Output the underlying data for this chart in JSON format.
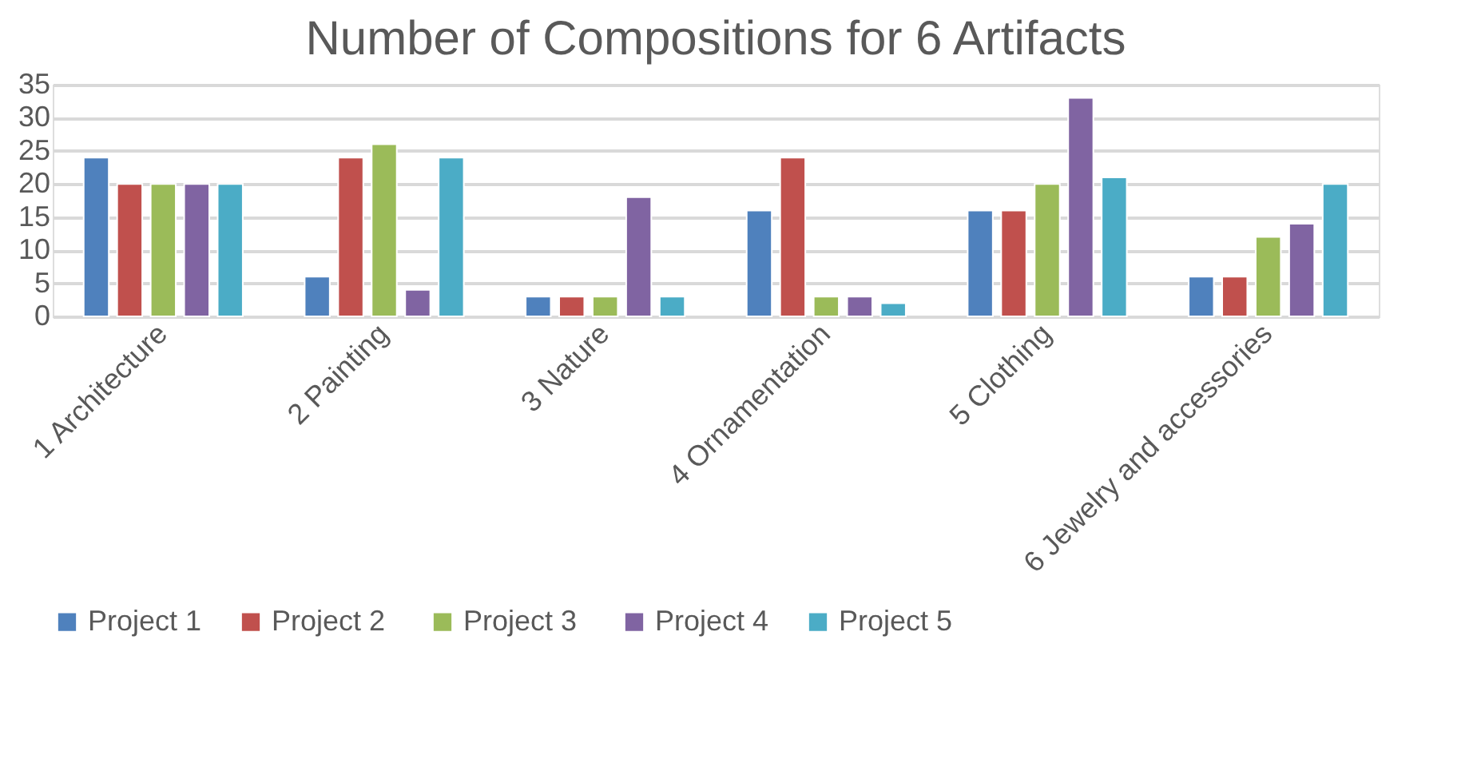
{
  "chart_data": {
    "type": "bar",
    "title": "Number of Compositions for 6 Artifacts",
    "categories": [
      "1 Architecture",
      "2 Painting",
      "3 Nature",
      "4 Ornamentation",
      "5 Clothing",
      "6 Jewelry and accessories"
    ],
    "series": [
      {
        "name": "Project 1",
        "color": "#4f81bd",
        "values": [
          24,
          6,
          3,
          16,
          16,
          6
        ]
      },
      {
        "name": "Project  2",
        "color": "#c0504d",
        "values": [
          20,
          24,
          3,
          24,
          16,
          6
        ]
      },
      {
        "name": "Project  3",
        "color": "#9bbb59",
        "values": [
          20,
          26,
          3,
          3,
          20,
          12
        ]
      },
      {
        "name": "Project 4",
        "color": "#8064a2",
        "values": [
          20,
          4,
          18,
          3,
          33,
          14
        ]
      },
      {
        "name": "Project 5",
        "color": "#4bacc6",
        "values": [
          20,
          24,
          3,
          2,
          21,
          20
        ]
      }
    ],
    "ylim": [
      0,
      35
    ],
    "yticks": [
      0,
      5,
      10,
      15,
      20,
      25,
      30,
      35
    ],
    "grid": "y",
    "legend": "bottom"
  }
}
